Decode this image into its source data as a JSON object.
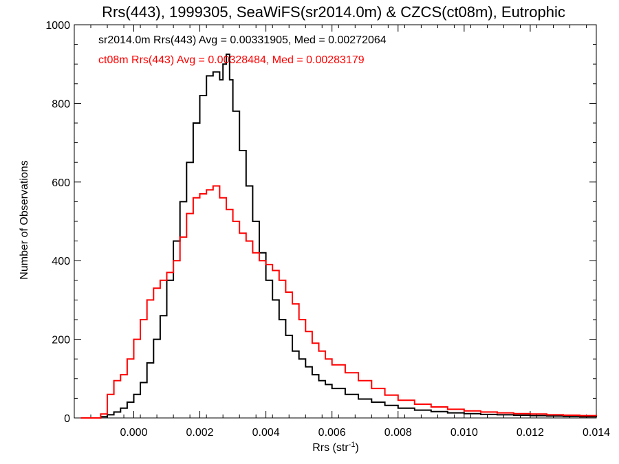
{
  "chart_data": {
    "type": "line",
    "step": true,
    "title": "Rrs(443), 1999305, SeaWiFS(sr2014.0m) & CZCS(ct08m), Eutrophic",
    "xlabel": "Rrs (str",
    "xlabel_sup": "-1",
    "xlabel_close": ")",
    "ylabel": "Number of Observations",
    "xlim": [
      -0.0018,
      0.014
    ],
    "ylim": [
      0,
      1000
    ],
    "xticks": [
      0.0,
      0.002,
      0.004,
      0.006,
      0.008,
      0.01,
      0.012,
      0.014
    ],
    "xtick_labels": [
      "0.000",
      "0.002",
      "0.004",
      "0.006",
      "0.008",
      "0.010",
      "0.012",
      "0.014"
    ],
    "yticks": [
      0,
      200,
      400,
      600,
      800,
      1000
    ],
    "ytick_labels": [
      "0",
      "200",
      "400",
      "600",
      "800",
      "1000"
    ],
    "grid": false,
    "legend_position": "top-left",
    "series": [
      {
        "name": "sr2014.0m",
        "color": "#000000",
        "annotation": "sr2014.0m Rrs(443) Avg = 0.00331905, Med = 0.00272064",
        "x": [
          -0.0016,
          -0.0012,
          -0.001,
          -0.0008,
          -0.0006,
          -0.0004,
          -0.0002,
          0.0,
          0.0002,
          0.0004,
          0.0006,
          0.0008,
          0.001,
          0.0012,
          0.0014,
          0.0016,
          0.0018,
          0.002,
          0.0022,
          0.0024,
          0.0026,
          0.0027,
          0.0028,
          0.0029,
          0.003,
          0.0032,
          0.0034,
          0.0036,
          0.0038,
          0.004,
          0.0042,
          0.0044,
          0.0046,
          0.0048,
          0.005,
          0.0052,
          0.0054,
          0.0056,
          0.0058,
          0.006,
          0.0064,
          0.0068,
          0.0072,
          0.0076,
          0.008,
          0.0085,
          0.009,
          0.0095,
          0.01,
          0.0105,
          0.011,
          0.0115,
          0.012,
          0.0125,
          0.013,
          0.0135,
          0.014
        ],
        "y": [
          0,
          0,
          3,
          8,
          15,
          25,
          40,
          60,
          90,
          140,
          200,
          260,
          350,
          450,
          550,
          650,
          750,
          820,
          870,
          880,
          860,
          900,
          925,
          860,
          780,
          680,
          590,
          500,
          420,
          350,
          300,
          250,
          210,
          170,
          150,
          130,
          110,
          95,
          85,
          75,
          60,
          48,
          40,
          32,
          25,
          20,
          16,
          13,
          11,
          9,
          8,
          7,
          6,
          5,
          4,
          3,
          2
        ]
      },
      {
        "name": "ct08m",
        "color": "#ff0000",
        "annotation": "ct08m Rrs(443) Avg = 0.00328484, Med = 0.00283179",
        "x": [
          -0.0016,
          -0.0012,
          -0.001,
          -0.0008,
          -0.0006,
          -0.0004,
          -0.0002,
          0.0,
          0.0002,
          0.0004,
          0.0006,
          0.0008,
          0.001,
          0.0012,
          0.0014,
          0.0016,
          0.0018,
          0.002,
          0.0022,
          0.0024,
          0.0026,
          0.0028,
          0.003,
          0.0032,
          0.0034,
          0.0036,
          0.0038,
          0.004,
          0.0042,
          0.0044,
          0.0046,
          0.0048,
          0.005,
          0.0052,
          0.0054,
          0.0056,
          0.0058,
          0.006,
          0.0064,
          0.0068,
          0.0072,
          0.0076,
          0.008,
          0.0085,
          0.009,
          0.0095,
          0.01,
          0.0105,
          0.011,
          0.0115,
          0.012,
          0.0125,
          0.013,
          0.0135,
          0.014
        ],
        "y": [
          0,
          0,
          10,
          60,
          95,
          110,
          150,
          200,
          250,
          300,
          330,
          350,
          370,
          400,
          460,
          520,
          560,
          570,
          580,
          590,
          560,
          530,
          500,
          470,
          450,
          420,
          400,
          390,
          375,
          350,
          320,
          290,
          250,
          220,
          190,
          170,
          150,
          135,
          115,
          95,
          75,
          58,
          45,
          35,
          28,
          22,
          18,
          15,
          13,
          11,
          10,
          8,
          7,
          6,
          5
        ]
      }
    ]
  }
}
